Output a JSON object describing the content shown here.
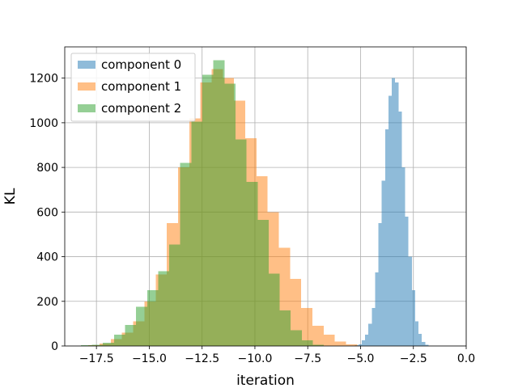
{
  "chart_data": {
    "type": "bar",
    "title": "",
    "xlabel": "iteration",
    "ylabel": "KL",
    "xlim": [
      -19.0,
      0.0
    ],
    "ylim": [
      0,
      1340
    ],
    "grid": true,
    "legend_position": "upper-left",
    "xticks": [
      -17.5,
      -15.0,
      -12.5,
      -10.0,
      -7.5,
      -5.0,
      -2.5,
      0.0
    ],
    "xtick_labels": [
      "−17.5",
      "−15.0",
      "−12.5",
      "−10.0",
      "−7.5",
      "−5.0",
      "−2.5",
      "0.0"
    ],
    "yticks": [
      0,
      200,
      400,
      600,
      800,
      1000,
      1200
    ],
    "ytick_labels": [
      "0",
      "200",
      "400",
      "600",
      "800",
      "1000",
      "1200"
    ],
    "series": [
      {
        "name": "component 0",
        "color": "#1f77b4",
        "alpha": 0.5,
        "bin_start": -5.26,
        "bin_width": 0.158,
        "counts": [
          3,
          8,
          25,
          50,
          100,
          170,
          330,
          550,
          740,
          970,
          1120,
          1200,
          1180,
          1050,
          800,
          580,
          400,
          250,
          110,
          55,
          18,
          5
        ]
      },
      {
        "name": "component 1",
        "color": "#ff7f0e",
        "alpha": 0.5,
        "bin_start": -17.88,
        "bin_width": 0.53,
        "counts": [
          3,
          10,
          30,
          60,
          110,
          200,
          320,
          550,
          800,
          1020,
          1180,
          1240,
          1200,
          1100,
          930,
          760,
          600,
          440,
          300,
          170,
          90,
          50,
          20,
          8
        ]
      },
      {
        "name": "component 2",
        "color": "#2ca02c",
        "alpha": 0.5,
        "bin_start": -18.24,
        "bin_width": 0.523,
        "counts": [
          3,
          5,
          15,
          50,
          95,
          175,
          250,
          335,
          455,
          820,
          1005,
          1215,
          1280,
          1175,
          925,
          735,
          565,
          325,
          160,
          70,
          25,
          5
        ]
      }
    ]
  }
}
